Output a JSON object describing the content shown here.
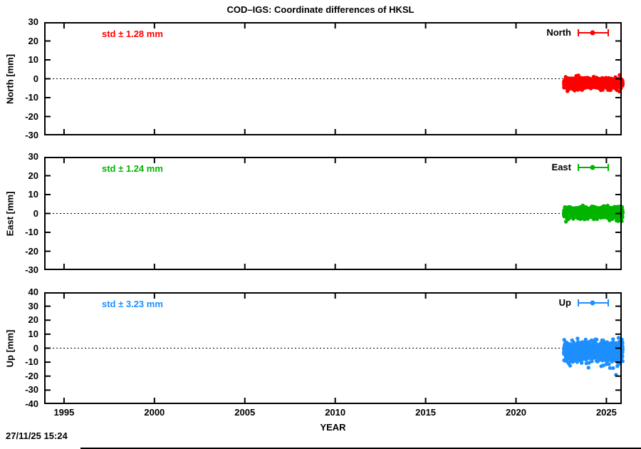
{
  "timestamp": "27/11/25 15:24",
  "chart_data": {
    "type": "scatter",
    "title": "COD–IGS: Coordinate differences of HKSL",
    "xlabel": "YEAR",
    "xlim": [
      1993.9,
      2025.85
    ],
    "xticks": [
      1995,
      2000,
      2005,
      2010,
      2015,
      2020,
      2025
    ],
    "grid": "zero-line-dotted-only",
    "legend_position": "top-right-inside",
    "panels": [
      {
        "name": "North",
        "ylabel": "North [mm]",
        "ylim": [
          -30,
          30
        ],
        "yticks": [
          30,
          20,
          10,
          0,
          -10,
          -20,
          -30
        ],
        "legend_label": "North",
        "std_label": "std ± 1.28 mm",
        "color": "#ff0000",
        "series": {
          "x_start": 2022.65,
          "x_end": 2025.9,
          "mean_mm": -2.2,
          "std_mm": 1.28,
          "n_points": 1150
        }
      },
      {
        "name": "East",
        "ylabel": "East [mm]",
        "ylim": [
          -30,
          30
        ],
        "yticks": [
          30,
          20,
          10,
          0,
          -10,
          -20,
          -30
        ],
        "legend_label": "East",
        "std_label": "std ± 1.24 mm",
        "color": "#00b400",
        "series": {
          "x_start": 2022.65,
          "x_end": 2025.9,
          "mean_mm": 0.5,
          "std_mm": 1.24,
          "n_points": 1150
        }
      },
      {
        "name": "Up",
        "ylabel": "Up [mm]",
        "ylim": [
          -40,
          40
        ],
        "yticks": [
          40,
          30,
          20,
          10,
          0,
          -10,
          -20,
          -30,
          -40
        ],
        "legend_label": "Up",
        "std_label": "std ± 3.23 mm",
        "color": "#1e8fff",
        "series": {
          "x_start": 2022.65,
          "x_end": 2025.9,
          "mean_mm": -2.3,
          "std_mm": 3.23,
          "n_points": 1150
        }
      }
    ]
  }
}
